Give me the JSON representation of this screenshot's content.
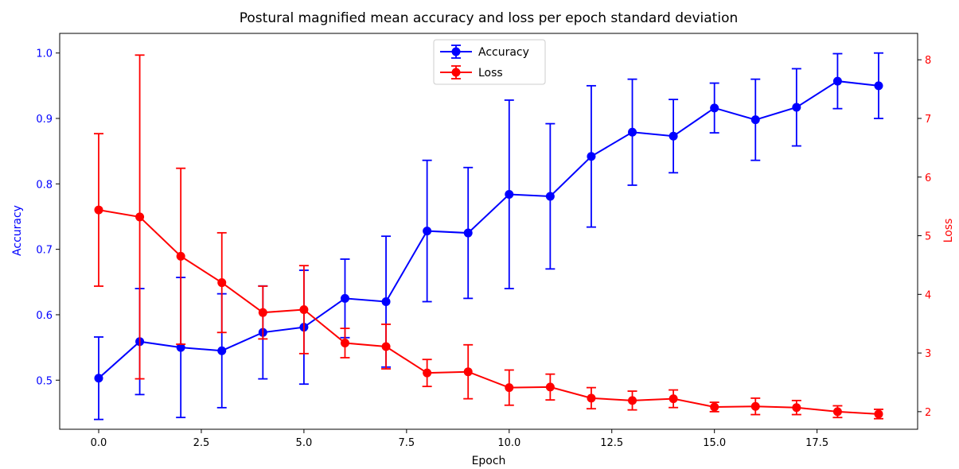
{
  "chart_data": {
    "type": "line",
    "title": "Postural magnified mean accuracy and loss per epoch standard deviation",
    "xlabel": "Epoch",
    "ylabel_left": "Accuracy",
    "ylabel_right": "Loss",
    "xlim": [
      -0.95,
      19.95
    ],
    "ylim_left": [
      0.425,
      1.03
    ],
    "ylim_right": [
      1.7,
      8.45
    ],
    "x_ticks": [
      0.0,
      2.5,
      5.0,
      7.5,
      10.0,
      12.5,
      15.0,
      17.5
    ],
    "x_tick_labels": [
      "0.0",
      "2.5",
      "5.0",
      "7.5",
      "10.0",
      "12.5",
      "15.0",
      "17.5"
    ],
    "y_left_ticks": [
      0.5,
      0.6,
      0.7,
      0.8,
      0.9,
      1.0
    ],
    "y_left_tick_labels": [
      "0.5",
      "0.6",
      "0.7",
      "0.8",
      "0.9",
      "1.0"
    ],
    "y_right_ticks": [
      2,
      3,
      4,
      5,
      6,
      7,
      8
    ],
    "y_right_tick_labels": [
      "2",
      "3",
      "4",
      "5",
      "6",
      "7",
      "8"
    ],
    "grid": false,
    "legend_position": "top-center",
    "x": [
      0,
      1,
      2,
      3,
      4,
      5,
      6,
      7,
      8,
      9,
      10,
      11,
      12,
      13,
      14,
      15,
      16,
      17,
      18,
      19
    ],
    "series": [
      {
        "name": "Accuracy",
        "axis": "left",
        "color": "#0000ff",
        "values": [
          0.503,
          0.559,
          0.55,
          0.545,
          0.573,
          0.581,
          0.625,
          0.62,
          0.728,
          0.725,
          0.784,
          0.781,
          0.842,
          0.879,
          0.873,
          0.916,
          0.898,
          0.917,
          0.957,
          0.95
        ],
        "errors": [
          0.063,
          0.081,
          0.107,
          0.087,
          0.071,
          0.087,
          0.06,
          0.1,
          0.108,
          0.1,
          0.144,
          0.111,
          0.108,
          0.081,
          0.056,
          0.038,
          0.062,
          0.059,
          0.042,
          0.05
        ]
      },
      {
        "name": "Loss",
        "axis": "right",
        "color": "#ff0000",
        "values": [
          5.44,
          5.32,
          4.65,
          4.2,
          3.69,
          3.74,
          3.17,
          3.11,
          2.66,
          2.68,
          2.41,
          2.42,
          2.23,
          2.19,
          2.22,
          2.08,
          2.09,
          2.07,
          2.0,
          1.96
        ],
        "errors": [
          1.3,
          2.76,
          1.5,
          0.85,
          0.45,
          0.75,
          0.25,
          0.38,
          0.23,
          0.46,
          0.3,
          0.22,
          0.18,
          0.16,
          0.15,
          0.08,
          0.14,
          0.12,
          0.1,
          0.08
        ]
      }
    ]
  }
}
